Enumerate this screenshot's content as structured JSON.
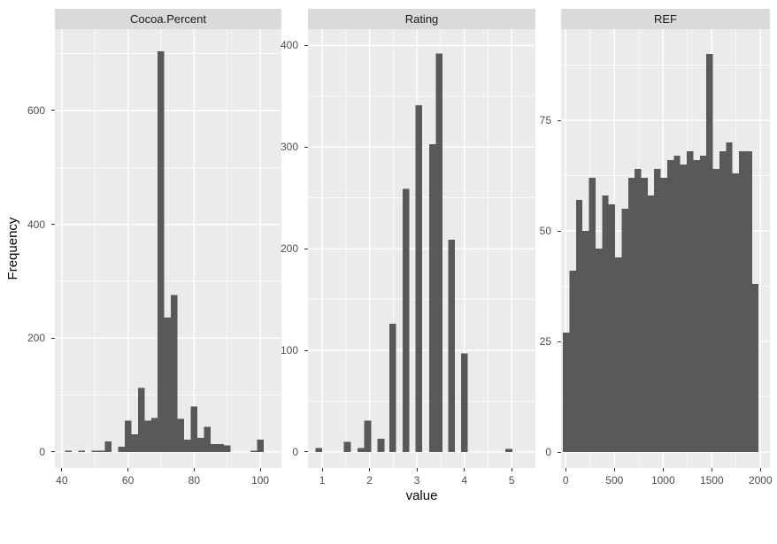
{
  "figure": {
    "y_axis_title": "Frequency",
    "x_axis_title": "value"
  },
  "colors": {
    "background": "#FFFFFF",
    "panel_background": "#EBEBEB",
    "strip_background": "#D9D9D9",
    "bar_fill": "#595959",
    "gridline": "#FFFFFF",
    "tick_label": "#4D4D4D",
    "tick_mark": "#333333",
    "title_text": "#1A1A1A"
  },
  "chart_data": [
    {
      "type": "bar",
      "subtype": "histogram",
      "title": "Cocoa.Percent",
      "xlabel": "value",
      "ylabel": "Frequency",
      "bin_width": 2,
      "x": [
        42,
        46,
        50,
        52,
        54,
        58,
        60,
        62,
        64,
        66,
        68,
        70,
        72,
        74,
        76,
        78,
        80,
        82,
        84,
        86,
        88,
        90,
        98,
        100
      ],
      "values": [
        2,
        2,
        2,
        2,
        19,
        9,
        55,
        31,
        113,
        55,
        60,
        704,
        236,
        276,
        58,
        22,
        80,
        25,
        44,
        14,
        14,
        12,
        2,
        22
      ],
      "x_ticks": [
        40,
        60,
        80,
        100
      ],
      "x_minor_ticks": [
        50,
        70,
        90
      ],
      "y_ticks": [
        0,
        200,
        400,
        600
      ],
      "y_minor_ticks": [
        100,
        300,
        500,
        700
      ],
      "xlim": [
        37.9,
        106.4
      ],
      "ylim": [
        -28,
        743
      ],
      "grid": true,
      "legend": "none"
    },
    {
      "type": "bar",
      "subtype": "histogram",
      "title": "Rating",
      "xlabel": "value",
      "ylabel": "Frequency",
      "bin_width": 0.143,
      "x": [
        0.93,
        1.53,
        1.82,
        1.96,
        2.24,
        2.49,
        2.77,
        3.04,
        3.33,
        3.47,
        3.73,
        4.0,
        4.94
      ],
      "values": [
        4,
        10,
        4,
        31,
        13,
        126,
        259,
        341,
        303,
        392,
        209,
        97,
        3
      ],
      "x_ticks": [
        1,
        2,
        3,
        4,
        5
      ],
      "x_minor_ticks": [
        1.5,
        2.5,
        3.5,
        4.5
      ],
      "y_ticks": [
        0,
        100,
        200,
        300,
        400
      ],
      "y_minor_ticks": [
        50,
        150,
        250,
        350
      ],
      "xlim": [
        0.7,
        5.5
      ],
      "ylim": [
        -15.7,
        416
      ],
      "grid": true,
      "legend": "none"
    },
    {
      "type": "bar",
      "subtype": "histogram",
      "title": "REF",
      "xlabel": "value",
      "ylabel": "Frequency",
      "bin_width": 67,
      "x": [
        4,
        71,
        138,
        205,
        272,
        339,
        406,
        473,
        540,
        607,
        674,
        741,
        808,
        875,
        942,
        1009,
        1076,
        1143,
        1210,
        1277,
        1344,
        1411,
        1478,
        1545,
        1612,
        1679,
        1746,
        1813,
        1880,
        1947
      ],
      "values": [
        27,
        41,
        57,
        50,
        62,
        46,
        58,
        56,
        44,
        55,
        62,
        64,
        62,
        58,
        64,
        62,
        66,
        67,
        65,
        68,
        66,
        67,
        90,
        64,
        68,
        70,
        63,
        68,
        68,
        38
      ],
      "x_ticks": [
        0,
        500,
        1000,
        1500,
        2000
      ],
      "x_minor_ticks": [
        250,
        750,
        1250,
        1750
      ],
      "y_ticks": [
        0,
        25,
        50,
        75
      ],
      "y_minor_ticks": [
        12.5,
        37.5,
        62.5,
        87.5
      ],
      "xlim": [
        -48,
        2097
      ],
      "ylim": [
        -3.6,
        95.6
      ],
      "grid": true,
      "legend": "none"
    }
  ]
}
